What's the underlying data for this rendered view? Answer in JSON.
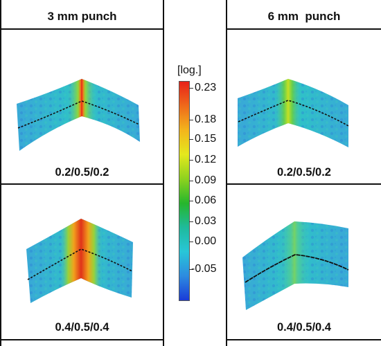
{
  "columns": [
    {
      "title": "3 mm punch"
    },
    {
      "title": "6 mm  punch"
    }
  ],
  "panels": [
    {
      "caption": "0.2/0.5/0.2"
    },
    {
      "caption": "0.4/0.5/0.4"
    },
    {
      "caption": "0.2/0.5/0.2"
    },
    {
      "caption": "0.4/0.5/0.4"
    }
  ],
  "colorbar": {
    "unit": "[log.]",
    "ticks": [
      "0.23",
      "0.18",
      "0.15",
      "0.12",
      "0.09",
      "0.06",
      "0.03",
      "0.00",
      "-0.05"
    ],
    "colors": [
      "#e8221a",
      "#ef6a1b",
      "#f3b51c",
      "#e4e81e",
      "#8ed21f",
      "#26b62c",
      "#1fba9c",
      "#28c6d8",
      "#2d8be0",
      "#1a3bd8"
    ]
  }
}
